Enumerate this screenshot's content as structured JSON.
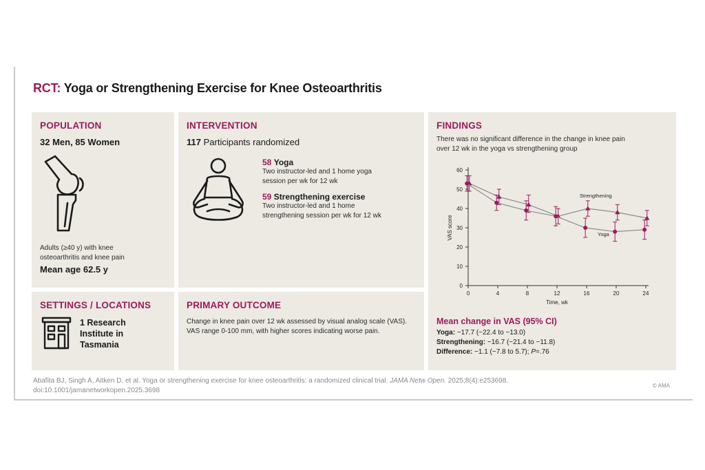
{
  "title": {
    "prefix": "RCT:",
    "text": "Yoga or Strengthening Exercise for Knee Osteoarthritis"
  },
  "population": {
    "heading": "POPULATION",
    "counts": "32 Men, 85 Women",
    "description_line1": "Adults (≥40 y) with knee",
    "description_line2": "osteoarthritis and knee pain",
    "mean_age": "Mean age 62.5 y",
    "icon": "knee-joint-icon"
  },
  "intervention": {
    "heading": "INTERVENTION",
    "participants_num": "117",
    "participants_text": "Participants randomized",
    "yoga": {
      "num": "58",
      "name": "Yoga",
      "line1": "Two instructor-led and 1 home yoga",
      "line2": "session per wk for 12 wk"
    },
    "strength": {
      "num": "59",
      "name": "Strengthening exercise",
      "line1": "Two instructor-led and 1 home",
      "line2": "strengthening session per wk for 12 wk"
    },
    "icon": "meditation-person-icon"
  },
  "findings": {
    "heading": "FINDINGS",
    "line1": "There was no significant difference in the change in knee pain",
    "line2": "over 12 wk in the yoga vs strengthening group",
    "mean_change_heading": "Mean change in VAS (95% CI)",
    "yoga_label": "Yoga:",
    "yoga_value": "−17.7 (−22.4 to −13.0)",
    "strength_label": "Strengthening:",
    "strength_value": "−16.7 (−21.4 to −11.8)",
    "diff_label": "Difference:",
    "diff_value": "−1.1 (−7.8 to 5.7);",
    "p_label": "P",
    "p_value": "=.76"
  },
  "settings": {
    "heading": "SETTINGS / LOCATIONS",
    "line1": "1 Research",
    "line2": "Institute in",
    "line3": "Tasmania",
    "icon": "building-icon"
  },
  "outcome": {
    "heading": "PRIMARY OUTCOME",
    "line1": "Change in knee pain over 12 wk assessed by visual analog scale (VAS).",
    "line2": "VAS range 0-100 mm, with higher scores indicating worse pain."
  },
  "citation": {
    "line1_a": "Abafita BJ, Singh A, Aitken D, et al. Yoga or strengthening exercise for knee osteoarthritis: a randomized clinical trial.",
    "journal": "JAMA Netw Open.",
    "line1_b": "2025;8(4):e253698.",
    "line2": "doi:10.1001/jamanetworkopen.2025.3698"
  },
  "copyright": "© AMA",
  "colors": {
    "accent": "#9c1a5b",
    "panel": "#eceae3",
    "line": "#8c8c8c"
  },
  "chart_data": {
    "type": "line",
    "x": [
      0,
      4,
      8,
      12,
      16,
      20,
      24
    ],
    "xlabel": "Time, wk",
    "ylabel": "VAS score",
    "xticks": [
      "0",
      "4",
      "8",
      "12",
      "16",
      "20",
      "24"
    ],
    "yticks": [
      "0",
      "10",
      "20",
      "30",
      "40",
      "50",
      "60"
    ],
    "xlim": [
      0,
      24
    ],
    "ylim": [
      0,
      60
    ],
    "series": [
      {
        "name": "Strengthening",
        "marker": "triangle",
        "values": [
          53,
          46,
          42,
          36,
          40,
          38,
          35
        ],
        "ci_low": [
          49,
          42,
          38,
          32,
          36,
          34,
          31
        ],
        "ci_high": [
          57,
          50,
          47,
          40,
          44,
          42,
          39
        ]
      },
      {
        "name": "Yoga",
        "marker": "circle",
        "values": [
          53,
          43,
          39,
          36,
          30,
          28,
          29
        ],
        "ci_low": [
          49,
          39,
          34,
          31,
          25,
          23,
          24
        ],
        "ci_high": [
          57,
          47,
          44,
          41,
          35,
          33,
          34
        ]
      }
    ]
  }
}
